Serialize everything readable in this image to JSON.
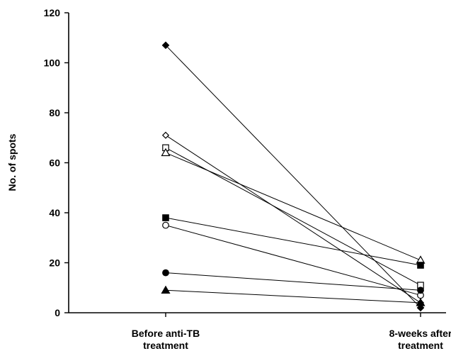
{
  "chart_data": {
    "type": "line",
    "title": "",
    "xlabel": "",
    "ylabel": "No. of spots",
    "categories": [
      [
        "Before anti-TB",
        "treatment"
      ],
      [
        "8-weeks after",
        "treatment"
      ]
    ],
    "ylim": [
      0,
      120
    ],
    "yticks": [
      0,
      20,
      40,
      60,
      80,
      100,
      120
    ],
    "grid": false,
    "legend": "none",
    "series": [
      {
        "marker": "filled-diamond",
        "values": [
          107,
          2
        ]
      },
      {
        "marker": "open-diamond",
        "values": [
          71,
          4
        ]
      },
      {
        "marker": "open-square",
        "values": [
          66,
          11
        ]
      },
      {
        "marker": "open-triangle",
        "values": [
          64,
          21
        ]
      },
      {
        "marker": "filled-square",
        "values": [
          38,
          19
        ]
      },
      {
        "marker": "open-circle",
        "values": [
          35,
          7
        ]
      },
      {
        "marker": "filled-circle",
        "values": [
          16,
          9
        ]
      },
      {
        "marker": "filled-triangle",
        "values": [
          9,
          4
        ]
      }
    ]
  }
}
